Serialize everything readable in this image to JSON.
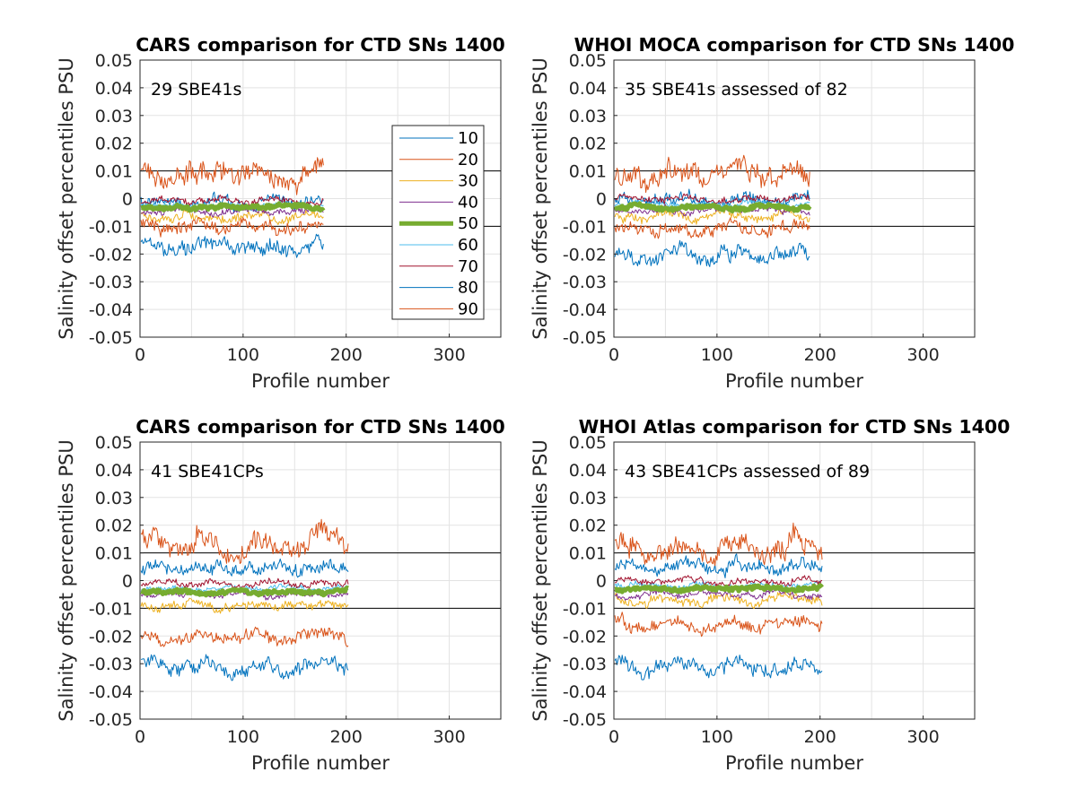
{
  "chart_data": [
    {
      "type": "line",
      "title": "CARS comparison for CTD SNs 1400",
      "xlabel": "Profile number",
      "ylabel": "Salinity offset percentiles PSU",
      "annotation": "29 SBE41s",
      "xlim": [
        0,
        350
      ],
      "ylim": [
        -0.05,
        0.05
      ],
      "xticks": [
        "0",
        "100",
        "200",
        "300"
      ],
      "yticks": [
        "-0.05",
        "-0.04",
        "-0.03",
        "-0.02",
        "-0.01",
        "0",
        "0.01",
        "0.02",
        "0.03",
        "0.04",
        "0.05"
      ],
      "reference_lines": [
        0.01,
        -0.01
      ],
      "grid": true,
      "legend_position": "top-right",
      "n_profiles": 178,
      "series": [
        {
          "name": "10",
          "approx_level": -0.0015
        },
        {
          "name": "20",
          "approx_level": 0.009
        },
        {
          "name": "30",
          "approx_level": -0.007
        },
        {
          "name": "40",
          "approx_level": -0.0045
        },
        {
          "name": "50",
          "approx_level": -0.003
        },
        {
          "name": "60",
          "approx_level": -0.0025
        },
        {
          "name": "70",
          "approx_level": -0.001
        },
        {
          "name": "80",
          "approx_level": -0.017
        },
        {
          "name": "90",
          "approx_level": -0.0105
        }
      ]
    },
    {
      "type": "line",
      "title": "WHOI MOCA comparison for CTD SNs 1400",
      "xlabel": "Profile number",
      "ylabel": "Salinity offset percentiles PSU",
      "annotation": "35 SBE41s assessed of 82",
      "xlim": [
        0,
        350
      ],
      "ylim": [
        -0.05,
        0.05
      ],
      "xticks": [
        "0",
        "100",
        "200",
        "300"
      ],
      "yticks": [
        "-0.05",
        "-0.04",
        "-0.03",
        "-0.02",
        "-0.01",
        "0",
        "0.01",
        "0.02",
        "0.03",
        "0.04",
        "0.05"
      ],
      "reference_lines": [
        0.01,
        -0.01
      ],
      "grid": true,
      "n_profiles": 190,
      "series": [
        {
          "name": "10",
          "approx_level": 0.0
        },
        {
          "name": "20",
          "approx_level": 0.009
        },
        {
          "name": "30",
          "approx_level": -0.0065
        },
        {
          "name": "40",
          "approx_level": -0.004
        },
        {
          "name": "50",
          "approx_level": -0.003
        },
        {
          "name": "60",
          "approx_level": -0.002
        },
        {
          "name": "70",
          "approx_level": 0.0
        },
        {
          "name": "80",
          "approx_level": -0.02
        },
        {
          "name": "90",
          "approx_level": -0.011
        }
      ]
    },
    {
      "type": "line",
      "title": "CARS comparison for CTD SNs 1400",
      "xlabel": "Profile number",
      "ylabel": "Salinity offset percentiles PSU",
      "annotation": "41 SBE41CPs",
      "xlim": [
        0,
        350
      ],
      "ylim": [
        -0.05,
        0.05
      ],
      "xticks": [
        "0",
        "100",
        "200",
        "300"
      ],
      "yticks": [
        "-0.05",
        "-0.04",
        "-0.03",
        "-0.02",
        "-0.01",
        "0",
        "0.01",
        "0.02",
        "0.03",
        "0.04",
        "0.05"
      ],
      "reference_lines": [
        0.01,
        -0.01
      ],
      "grid": true,
      "n_profiles": 202,
      "series": [
        {
          "name": "10",
          "approx_level": 0.004
        },
        {
          "name": "20",
          "approx_level": 0.014
        },
        {
          "name": "30",
          "approx_level": -0.009
        },
        {
          "name": "40",
          "approx_level": -0.005
        },
        {
          "name": "50",
          "approx_level": -0.004
        },
        {
          "name": "60",
          "approx_level": -0.003
        },
        {
          "name": "70",
          "approx_level": -0.0015
        },
        {
          "name": "80",
          "approx_level": -0.031
        },
        {
          "name": "90",
          "approx_level": -0.02
        }
      ]
    },
    {
      "type": "line",
      "title": "WHOI Atlas comparison for CTD SNs 1400",
      "xlabel": "Profile number",
      "ylabel": "Salinity offset percentiles PSU",
      "annotation": "43 SBE41CPs assessed of 89",
      "xlim": [
        0,
        350
      ],
      "ylim": [
        -0.05,
        0.05
      ],
      "xticks": [
        "0",
        "100",
        "200",
        "300"
      ],
      "yticks": [
        "-0.05",
        "-0.04",
        "-0.03",
        "-0.02",
        "-0.01",
        "0",
        "0.01",
        "0.02",
        "0.03",
        "0.04",
        "0.05"
      ],
      "reference_lines": [
        0.01,
        -0.01
      ],
      "grid": true,
      "n_profiles": 202,
      "series": [
        {
          "name": "10",
          "approx_level": 0.005
        },
        {
          "name": "20",
          "approx_level": 0.012
        },
        {
          "name": "30",
          "approx_level": -0.007
        },
        {
          "name": "40",
          "approx_level": -0.005
        },
        {
          "name": "50",
          "approx_level": -0.003
        },
        {
          "name": "60",
          "approx_level": -0.002
        },
        {
          "name": "70",
          "approx_level": -0.0005
        },
        {
          "name": "80",
          "approx_level": -0.031
        },
        {
          "name": "90",
          "approx_level": -0.016
        }
      ]
    }
  ],
  "legend": {
    "entries": [
      "10",
      "20",
      "30",
      "40",
      "50",
      "60",
      "70",
      "80",
      "90"
    ],
    "colors": [
      "#0072BD",
      "#D95319",
      "#EDB120",
      "#7E2F8E",
      "#77AC30",
      "#4DBEEE",
      "#A2142F",
      "#0072BD",
      "#D95319"
    ],
    "highlight_entry": "50"
  }
}
